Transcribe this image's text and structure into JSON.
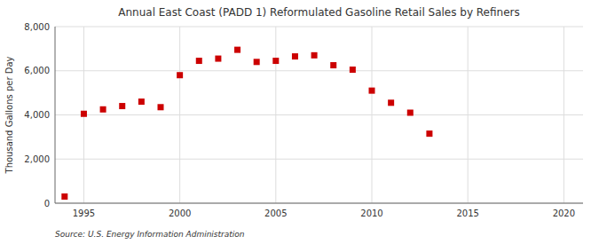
{
  "chart_data": {
    "type": "scatter",
    "title": "Annual East Coast (PADD 1) Reformulated Gasoline Retail Sales by Refiners",
    "ylabel": "Thousand Gallons per Day",
    "source": "Source: U.S. Energy Information Administration",
    "color": "#cc0000",
    "marker": "square",
    "grid": true,
    "xlim": [
      1993.5,
      2021
    ],
    "ylim": [
      0,
      8000
    ],
    "xticks": [
      1995,
      2000,
      2005,
      2010,
      2015,
      2020
    ],
    "yticks": [
      0,
      {
        "value": 2000,
        "label": "2,000"
      },
      {
        "value": 4000,
        "label": "4,000"
      },
      {
        "value": 6000,
        "label": "6,000"
      },
      {
        "value": 8000,
        "label": "8,000"
      }
    ],
    "x": [
      1994,
      1995,
      1996,
      1997,
      1998,
      1999,
      2000,
      2001,
      2002,
      2003,
      2004,
      2005,
      2006,
      2007,
      2008,
      2009,
      2010,
      2011,
      2012,
      2013
    ],
    "values": [
      300,
      4050,
      4250,
      4400,
      4600,
      4350,
      5800,
      6450,
      6550,
      6950,
      6400,
      6450,
      6650,
      6700,
      6250,
      6050,
      5100,
      4550,
      4100,
      3150
    ]
  }
}
